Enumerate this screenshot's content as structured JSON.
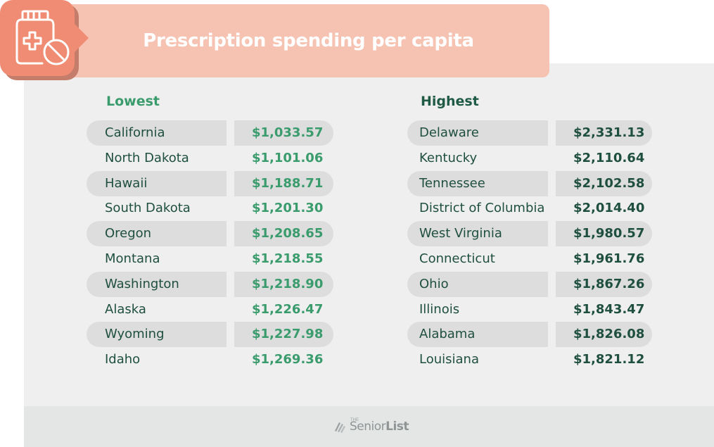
{
  "title": "Prescription spending per capita",
  "columns": {
    "lowest": {
      "header": "Lowest",
      "rows": [
        {
          "state": "California",
          "value": "$1,033.57"
        },
        {
          "state": "North Dakota",
          "value": "$1,101.06"
        },
        {
          "state": "Hawaii",
          "value": "$1,188.71"
        },
        {
          "state": "South Dakota",
          "value": "$1,201.30"
        },
        {
          "state": "Oregon",
          "value": "$1,208.65"
        },
        {
          "state": "Montana",
          "value": "$1,218.55"
        },
        {
          "state": "Washington",
          "value": "$1,218.90"
        },
        {
          "state": "Alaska",
          "value": "$1,226.47"
        },
        {
          "state": "Wyoming",
          "value": "$1,227.98"
        },
        {
          "state": "Idaho",
          "value": "$1,269.36"
        }
      ]
    },
    "highest": {
      "header": "Highest",
      "rows": [
        {
          "state": "Delaware",
          "value": "$2,331.13"
        },
        {
          "state": "Kentucky",
          "value": "$2,110.64"
        },
        {
          "state": "Tennessee",
          "value": "$2,102.58"
        },
        {
          "state": "District of Columbia",
          "value": "$2,014.40"
        },
        {
          "state": "West Virginia",
          "value": "$1,980.57"
        },
        {
          "state": "Connecticut",
          "value": "$1,961.76"
        },
        {
          "state": "Ohio",
          "value": "$1,867.26"
        },
        {
          "state": "Illinois",
          "value": "$1,843.47"
        },
        {
          "state": "Alabama",
          "value": "$1,826.08"
        },
        {
          "state": "Louisiana",
          "value": "$1,821.12"
        }
      ]
    }
  },
  "footer": {
    "logo_small": "THE",
    "logo_regular": "Senior",
    "logo_bold": "List"
  },
  "icons": {
    "badge": "pill-bottle-icon",
    "logo": "senior-list-logo-icon"
  },
  "colors": {
    "banner": "#f6c2b2",
    "badge": "#ef8c73",
    "lowest_accent": "#3a9b6d",
    "highest_accent": "#1f5a45",
    "stripe": "#dddddd"
  }
}
